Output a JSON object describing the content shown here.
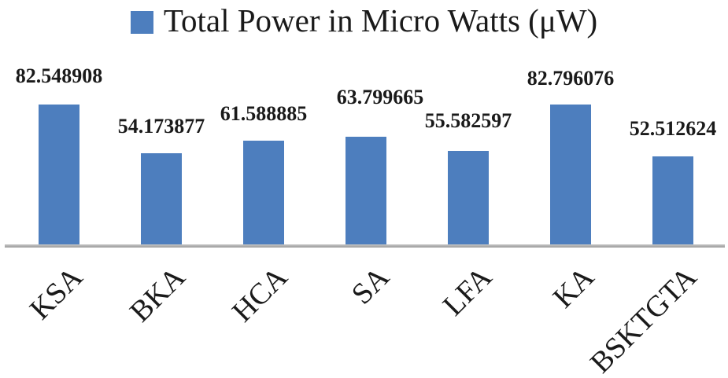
{
  "legend": {
    "label": "Total Power in Micro Watts (μW)",
    "marker_color": "#4D7EBE"
  },
  "chart_data": {
    "type": "bar",
    "title": "Total Power in Micro Watts (μW)",
    "series_name": "Total Power in Micro Watts (μW)",
    "categories": [
      "KSA",
      "BKA",
      "HCA",
      "SA",
      "LFA",
      "KA",
      "BSKTGTA"
    ],
    "values": [
      82.548908,
      54.173877,
      61.588885,
      63.799665,
      55.582597,
      82.796076,
      52.512624
    ],
    "data_labels": [
      "82.548908",
      "54.173877",
      "61.588885",
      "63.799665",
      "55.582597",
      "82.796076",
      "52.512624"
    ],
    "xlabel": "",
    "ylabel": "",
    "ylim": [
      0,
      90
    ],
    "y_axis_visible": false,
    "gridlines": false,
    "legend_position": "top-center",
    "bar_color": "#4D7EBE",
    "axis_line_color": "#A6A6A6",
    "category_label_rotation_deg": 45,
    "label_offsets": {
      "dy": [
        23,
        21,
        21,
        37,
        25,
        20,
        22
      ],
      "dx": [
        0,
        0,
        0,
        18,
        0,
        0,
        0
      ]
    }
  }
}
